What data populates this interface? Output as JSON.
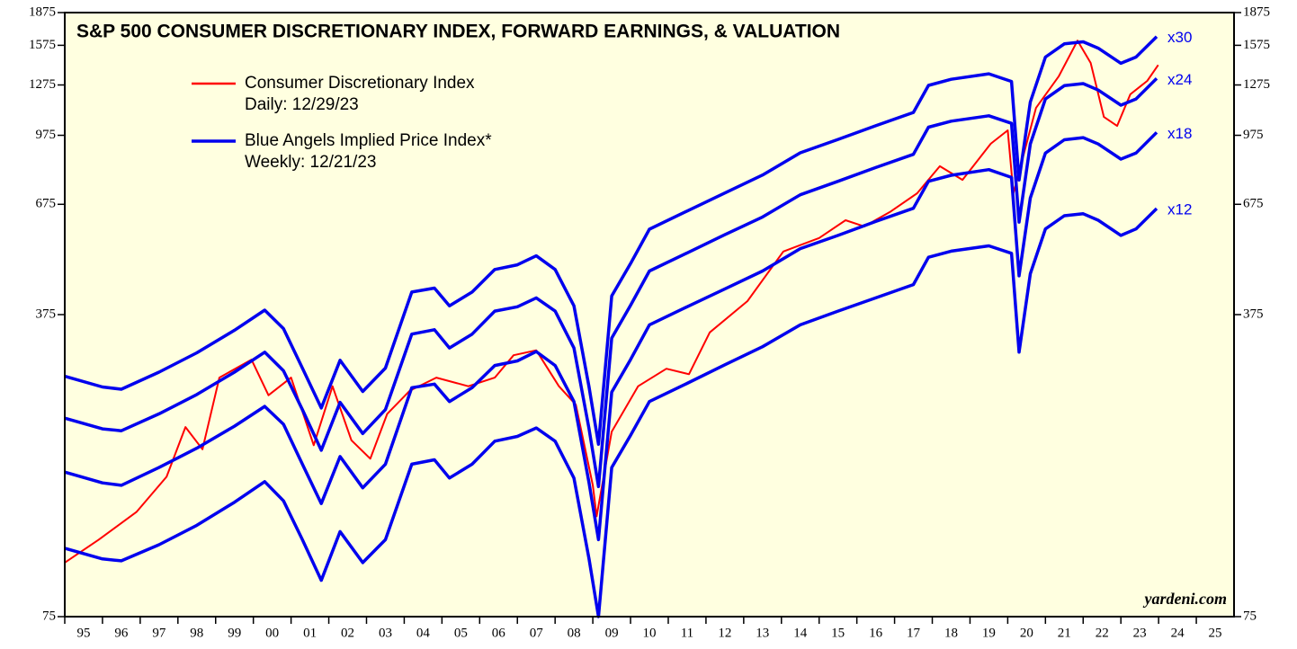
{
  "chart_data": {
    "type": "line",
    "title": "S&P 500 CONSUMER DISCRETIONARY INDEX, FORWARD EARNINGS, & VALUATION",
    "source": "yardeni.com",
    "log_scale": true,
    "xlim": [
      1995,
      2026
    ],
    "xticks": [
      {
        "value": 1995,
        "label": "95"
      },
      {
        "value": 1996,
        "label": "96"
      },
      {
        "value": 1997,
        "label": "97"
      },
      {
        "value": 1998,
        "label": "98"
      },
      {
        "value": 1999,
        "label": "99"
      },
      {
        "value": 2000,
        "label": "00"
      },
      {
        "value": 2001,
        "label": "01"
      },
      {
        "value": 2002,
        "label": "02"
      },
      {
        "value": 2003,
        "label": "03"
      },
      {
        "value": 2004,
        "label": "04"
      },
      {
        "value": 2005,
        "label": "05"
      },
      {
        "value": 2006,
        "label": "06"
      },
      {
        "value": 2007,
        "label": "07"
      },
      {
        "value": 2008,
        "label": "08"
      },
      {
        "value": 2009,
        "label": "09"
      },
      {
        "value": 2010,
        "label": "10"
      },
      {
        "value": 2011,
        "label": "11"
      },
      {
        "value": 2012,
        "label": "12"
      },
      {
        "value": 2013,
        "label": "13"
      },
      {
        "value": 2014,
        "label": "14"
      },
      {
        "value": 2015,
        "label": "15"
      },
      {
        "value": 2016,
        "label": "16"
      },
      {
        "value": 2017,
        "label": "17"
      },
      {
        "value": 2018,
        "label": "18"
      },
      {
        "value": 2019,
        "label": "19"
      },
      {
        "value": 2020,
        "label": "20"
      },
      {
        "value": 2021,
        "label": "21"
      },
      {
        "value": 2022,
        "label": "22"
      },
      {
        "value": 2023,
        "label": "23"
      },
      {
        "value": 2024,
        "label": "24"
      },
      {
        "value": 2025,
        "label": "25"
      }
    ],
    "ylim": [
      75,
      1875
    ],
    "yticks": [
      75,
      375,
      675,
      975,
      1275,
      1575,
      1875
    ],
    "blue_legend": {
      "label": "Blue Angels Implied Price Index*",
      "note": "Weekly: 12/21/23",
      "color": "#0000ee"
    },
    "x": [
      1995.0,
      1996.0,
      1996.5,
      1997.5,
      1998.5,
      1999.5,
      2000.3,
      2000.8,
      2001.3,
      2001.8,
      2002.3,
      2002.9,
      2003.5,
      2004.2,
      2004.8,
      2005.2,
      2005.8,
      2006.4,
      2007.0,
      2007.5,
      2008.0,
      2008.5,
      2008.9,
      2009.15,
      2009.5,
      2010.0,
      2010.5,
      2011.5,
      2012.5,
      2013.5,
      2014.5,
      2015.5,
      2016.5,
      2017.5,
      2017.9,
      2018.5,
      2019.5,
      2020.1,
      2020.3,
      2020.6,
      2021.0,
      2021.5,
      2022.0,
      2022.4,
      2023.0,
      2023.4,
      2023.95
    ],
    "series": [
      {
        "name": "Consumer Discretionary Index",
        "note": "Daily: 12/29/23",
        "color": "#ff0000",
        "width": 2,
        "x": [
          1995.0,
          1995.9,
          1996.9,
          1997.7,
          1998.2,
          1998.65,
          1999.1,
          1999.95,
          2000.4,
          2001.0,
          2001.6,
          2002.1,
          2002.6,
          2003.1,
          2003.55,
          2004.15,
          2004.85,
          2005.7,
          2006.4,
          2006.9,
          2007.5,
          2008.1,
          2008.55,
          2009.0,
          2009.1,
          2009.5,
          2010.2,
          2010.95,
          2011.55,
          2012.1,
          2013.1,
          2014.05,
          2015.0,
          2015.7,
          2016.2,
          2016.9,
          2017.6,
          2018.2,
          2018.8,
          2019.55,
          2020.0,
          2020.15,
          2020.75,
          2021.35,
          2021.85,
          2022.2,
          2022.55,
          2022.9,
          2023.25,
          2023.7,
          2023.99
        ],
        "values": [
          100,
          113,
          131,
          158,
          206,
          183,
          268,
          295,
          244,
          268,
          187,
          256,
          192,
          174,
          221,
          250,
          268,
          256,
          268,
          302,
          310,
          256,
          232,
          151,
          128,
          201,
          256,
          281,
          273,
          341,
          403,
          525,
          564,
          620,
          600,
          650,
          716,
          827,
          769,
          932,
          1001,
          716,
          1128,
          1334,
          1615,
          1434,
          1075,
          1025,
          1213,
          1303,
          1418
        ]
      },
      {
        "name": "x30",
        "color": "#0000ee",
        "width": 3.5,
        "values": [
          270,
          255,
          252,
          276,
          306,
          345,
          384,
          348,
          282,
          228,
          294,
          249,
          282,
          423,
          432,
          393,
          423,
          477,
          489,
          513,
          477,
          393,
          255,
          188,
          414,
          492,
          591,
          651,
          717,
          789,
          888,
          954,
          1026,
          1101,
          1272,
          1314,
          1353,
          1299,
          768,
          1164,
          1479,
          1587,
          1605,
          1551,
          1431,
          1479,
          1650
        ]
      },
      {
        "name": "x24",
        "color": "#0000ee",
        "width": 3.5,
        "values": [
          216,
          204,
          202,
          221,
          245,
          276,
          307,
          278,
          226,
          182,
          235,
          199,
          226,
          338,
          346,
          314,
          338,
          382,
          391,
          410,
          382,
          314,
          204,
          150,
          331,
          394,
          473,
          521,
          574,
          631,
          710,
          763,
          821,
          881,
          1018,
          1051,
          1082,
          1039,
          614,
          931,
          1183,
          1270,
          1284,
          1241,
          1145,
          1183,
          1320
        ]
      },
      {
        "name": "x18",
        "color": "#0000ee",
        "width": 3.5,
        "values": [
          162,
          153,
          151,
          166,
          184,
          207,
          230,
          209,
          169,
          137,
          176,
          149,
          169,
          254,
          259,
          236,
          254,
          286,
          293,
          308,
          286,
          236,
          153,
          113,
          248,
          295,
          355,
          391,
          430,
          473,
          533,
          572,
          616,
          661,
          763,
          788,
          812,
          779,
          461,
          698,
          887,
          952,
          963,
          931,
          859,
          887,
          990
        ]
      },
      {
        "name": "x12",
        "color": "#0000ee",
        "width": 3.5,
        "values": [
          108,
          102,
          101,
          110,
          122,
          138,
          154,
          139,
          113,
          91,
          118,
          100,
          113,
          169,
          173,
          157,
          169,
          191,
          196,
          205,
          191,
          157,
          102,
          75,
          166,
          197,
          236,
          260,
          287,
          316,
          355,
          382,
          410,
          440,
          509,
          526,
          541,
          520,
          307,
          466,
          592,
          635,
          642,
          620,
          572,
          592,
          660
        ]
      }
    ]
  }
}
